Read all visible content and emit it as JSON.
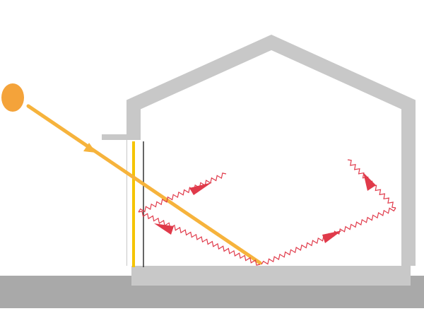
{
  "diagram": {
    "description_free": true,
    "colors": {
      "background": "#ffffff",
      "ground": "#a9a9a9",
      "wall": "#c8c8c8",
      "sun": "#f4a33a",
      "sunbeam": "#f6b33c",
      "glass": "#f5c400",
      "glass_frame": "#333333",
      "heat_wave": "#e03a4a",
      "heat_arrow": "#e03a4a"
    },
    "icons": {
      "sun": "sun-icon",
      "arrow": "arrow-icon"
    }
  }
}
